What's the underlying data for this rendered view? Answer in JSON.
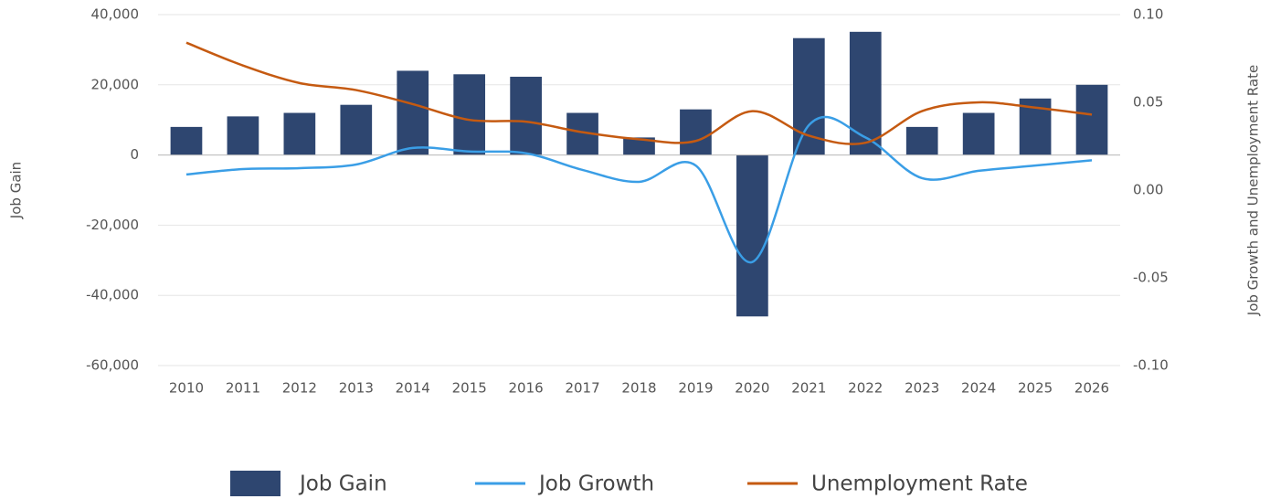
{
  "chart_data": {
    "type": "bar",
    "categories": [
      "2010",
      "2011",
      "2012",
      "2013",
      "2014",
      "2015",
      "2016",
      "2017",
      "2018",
      "2019",
      "2020",
      "2021",
      "2022",
      "2023",
      "2024",
      "2025",
      "2026"
    ],
    "series": [
      {
        "name": "Job Gain",
        "type": "bar",
        "color": "#2e4670",
        "values": [
          8000,
          11000,
          12000,
          14300,
          24000,
          23000,
          22300,
          12000,
          5000,
          13000,
          -46000,
          33300,
          35100,
          8000,
          12000,
          16100,
          20000
        ]
      },
      {
        "name": "Job Growth",
        "type": "line",
        "axis": "y2",
        "color": "#3a9ee6",
        "values": [
          0.0089,
          0.012,
          0.0125,
          0.0146,
          0.024,
          0.022,
          0.021,
          0.0115,
          0.0047,
          0.014,
          -0.041,
          0.037,
          0.03,
          0.0068,
          0.011,
          0.014,
          0.017
        ]
      },
      {
        "name": "Unemployment Rate",
        "type": "line",
        "axis": "y2",
        "color": "#c55a11",
        "values": [
          0.084,
          0.071,
          0.061,
          0.057,
          0.049,
          0.04,
          0.039,
          0.033,
          0.029,
          0.028,
          0.045,
          0.031,
          0.027,
          0.045,
          0.05,
          0.047,
          0.043
        ]
      }
    ],
    "ylabel": "Job Gain",
    "y2label": "Job Growth and Unemployment Rate",
    "ylim": [
      -60000,
      40000
    ],
    "yticks": [
      {
        "value": -60000,
        "label": "-60,000"
      },
      {
        "value": -40000,
        "label": "-40,000"
      },
      {
        "value": -20000,
        "label": "-20,000"
      },
      0,
      {
        "value": 20000,
        "label": "20,000"
      },
      {
        "value": 40000,
        "label": "40,000"
      }
    ],
    "y2lim": [
      -0.1,
      0.1
    ],
    "y2ticks": [
      {
        "value": -0.1,
        "label": "-0.10"
      },
      {
        "value": -0.05,
        "label": "-0.05"
      },
      {
        "value": 0,
        "label": "0.00"
      },
      {
        "value": 0.05,
        "label": "0.05"
      },
      {
        "value": 0.1,
        "label": "0.10"
      }
    ],
    "grid": true,
    "legend": "bottom"
  }
}
